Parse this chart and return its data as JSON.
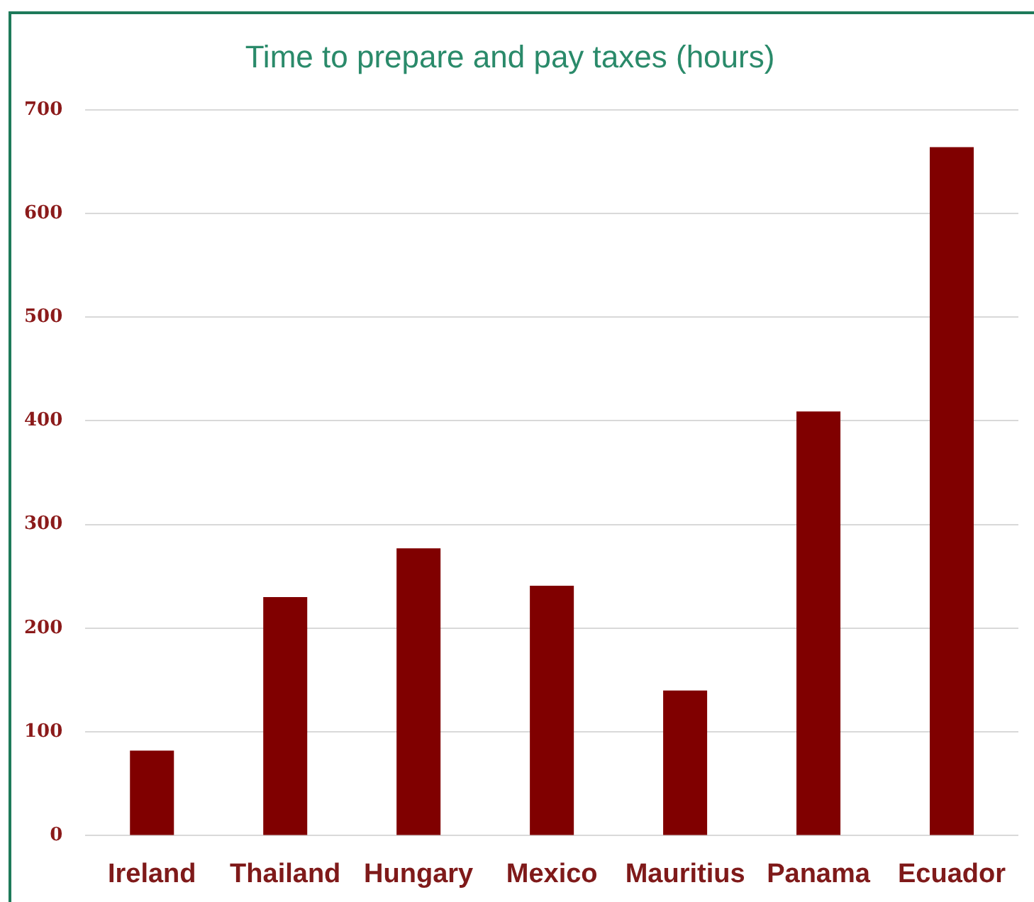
{
  "chart_data": {
    "type": "bar",
    "title": "Time to prepare and pay taxes (hours)",
    "categories": [
      "Ireland",
      "Thailand",
      "Hungary",
      "Mexico",
      "Mauritius",
      "Panama",
      "Ecuador"
    ],
    "values": [
      82,
      230,
      277,
      241,
      140,
      409,
      664
    ],
    "color": "#800000",
    "ylim": [
      0,
      700
    ],
    "yticks": [
      0,
      100,
      200,
      300,
      400,
      500,
      600,
      700
    ],
    "grid": "y"
  }
}
